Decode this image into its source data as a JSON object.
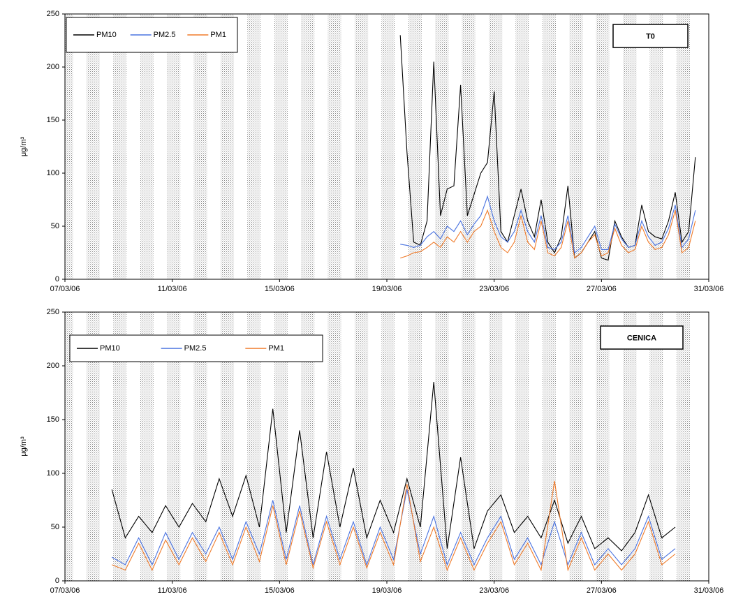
{
  "chart_data": [
    {
      "type": "line",
      "title": "T0",
      "y_label": "μg/m³",
      "xlim": [
        7,
        31
      ],
      "ylim": [
        0,
        250
      ],
      "yticks": [
        0,
        50,
        100,
        150,
        200,
        250
      ],
      "xticks": [
        {
          "value": 7,
          "label": "07/03/06"
        },
        {
          "value": 11,
          "label": "11/03/06"
        },
        {
          "value": 15,
          "label": "15/03/06"
        },
        {
          "value": 19,
          "label": "19/03/06"
        },
        {
          "value": 23,
          "label": "23/03/06"
        },
        {
          "value": 27,
          "label": "27/03/06"
        },
        {
          "value": 31,
          "label": "31/03/06"
        }
      ],
      "x": [
        19.5,
        19.75,
        20,
        20.25,
        20.5,
        20.75,
        21,
        21.25,
        21.5,
        21.75,
        22,
        22.25,
        22.5,
        22.75,
        23,
        23.25,
        23.5,
        23.75,
        24,
        24.25,
        24.5,
        24.75,
        25,
        25.25,
        25.5,
        25.75,
        26,
        26.25,
        26.5,
        26.75,
        27,
        27.25,
        27.5,
        27.75,
        28,
        28.25,
        28.5,
        28.75,
        29,
        29.25,
        29.5,
        29.75,
        30,
        30.25,
        30.5
      ],
      "series": [
        {
          "name": "PM10",
          "color": "#000000",
          "values": [
            230,
            120,
            35,
            32,
            55,
            205,
            60,
            85,
            88,
            183,
            60,
            80,
            100,
            110,
            177,
            45,
            35,
            60,
            85,
            55,
            40,
            75,
            35,
            25,
            40,
            88,
            20,
            25,
            35,
            45,
            20,
            18,
            55,
            40,
            30,
            32,
            70,
            45,
            40,
            38,
            55,
            82,
            35,
            45,
            115
          ]
        },
        {
          "name": "PM2.5",
          "color": "#4a73e0",
          "values": [
            33,
            32,
            30,
            32,
            40,
            45,
            38,
            50,
            45,
            55,
            42,
            52,
            60,
            78,
            55,
            40,
            35,
            45,
            65,
            45,
            35,
            60,
            30,
            28,
            35,
            60,
            25,
            30,
            40,
            50,
            28,
            28,
            52,
            38,
            30,
            32,
            55,
            40,
            32,
            35,
            48,
            70,
            30,
            38,
            65
          ]
        },
        {
          "name": "PM1",
          "color": "#f07b2a",
          "values": [
            20,
            22,
            25,
            26,
            30,
            35,
            30,
            40,
            35,
            45,
            35,
            45,
            50,
            65,
            45,
            30,
            25,
            35,
            60,
            35,
            28,
            55,
            25,
            22,
            30,
            55,
            20,
            25,
            35,
            42,
            22,
            25,
            48,
            32,
            25,
            28,
            50,
            35,
            28,
            30,
            42,
            65,
            25,
            30,
            55
          ]
        }
      ]
    },
    {
      "type": "line",
      "title": "CENICA",
      "y_label": "μg/m³",
      "xlim": [
        7,
        31
      ],
      "ylim": [
        0,
        250
      ],
      "yticks": [
        0,
        50,
        100,
        150,
        200,
        250
      ],
      "xticks": [
        {
          "value": 7,
          "label": "07/03/06"
        },
        {
          "value": 11,
          "label": "11/03/06"
        },
        {
          "value": 15,
          "label": "15/03/06"
        },
        {
          "value": 19,
          "label": "19/03/06"
        },
        {
          "value": 23,
          "label": "23/03/06"
        },
        {
          "value": 27,
          "label": "27/03/06"
        },
        {
          "value": 31,
          "label": "31/03/06"
        }
      ],
      "x": [
        8.75,
        9.25,
        9.75,
        10.25,
        10.75,
        11.25,
        11.75,
        12.25,
        12.75,
        13.25,
        13.75,
        14.25,
        14.75,
        15.25,
        15.75,
        16.25,
        16.75,
        17.25,
        17.75,
        18.25,
        18.75,
        19.25,
        19.75,
        20.25,
        20.75,
        21.25,
        21.75,
        22.25,
        22.75,
        23.25,
        23.75,
        24.25,
        24.75,
        25.25,
        25.75,
        26.25,
        26.75,
        27.25,
        27.75,
        28.25,
        28.75,
        29.25,
        29.75
      ],
      "series": [
        {
          "name": "PM10",
          "color": "#000000",
          "values": [
            85,
            40,
            60,
            45,
            70,
            50,
            72,
            55,
            95,
            60,
            98,
            50,
            160,
            45,
            140,
            40,
            120,
            50,
            105,
            40,
            75,
            45,
            95,
            50,
            185,
            30,
            115,
            30,
            65,
            80,
            45,
            60,
            40,
            75,
            35,
            60,
            30,
            40,
            28,
            45,
            80,
            40,
            50
          ]
        },
        {
          "name": "PM2.5",
          "color": "#4a73e0",
          "values": [
            22,
            15,
            40,
            15,
            45,
            20,
            45,
            25,
            50,
            20,
            55,
            25,
            75,
            20,
            70,
            15,
            60,
            20,
            55,
            15,
            50,
            20,
            85,
            25,
            60,
            15,
            45,
            15,
            40,
            60,
            20,
            40,
            15,
            55,
            15,
            45,
            15,
            30,
            15,
            30,
            60,
            20,
            30
          ]
        },
        {
          "name": "PM1",
          "color": "#f07b2a",
          "values": [
            15,
            10,
            35,
            10,
            38,
            15,
            40,
            18,
            45,
            15,
            50,
            18,
            70,
            15,
            65,
            12,
            55,
            15,
            50,
            12,
            45,
            15,
            90,
            18,
            50,
            10,
            40,
            10,
            35,
            55,
            15,
            35,
            10,
            93,
            10,
            40,
            10,
            25,
            10,
            25,
            55,
            15,
            25
          ]
        }
      ]
    }
  ]
}
